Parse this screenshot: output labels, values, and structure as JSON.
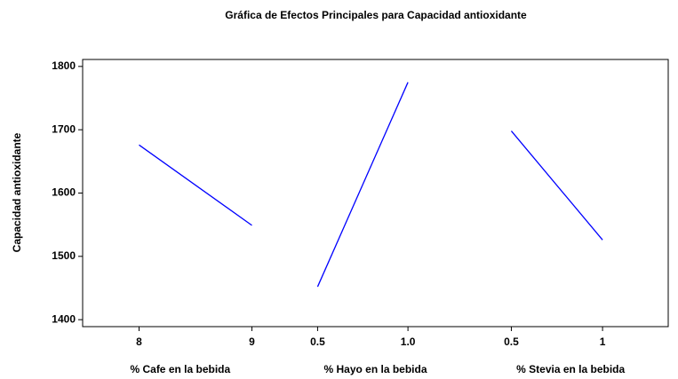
{
  "chart_data": {
    "type": "line",
    "title": "Gráfica de Efectos Principales para Capacidad antioxidante",
    "ylabel": "Capacidad antioxidante",
    "ylim": [
      1389,
      1811
    ],
    "yticks": [
      1400,
      1500,
      1600,
      1700,
      1800
    ],
    "color": "#0000ff",
    "panels": [
      {
        "xlabel": "% Cafe en la bebida",
        "x": [
          8,
          9
        ],
        "values": [
          1676,
          1549
        ],
        "xlim": [
          7.5,
          9.23
        ],
        "xticks": [
          8,
          9
        ]
      },
      {
        "xlabel": "% Hayo en la bebida",
        "x": [
          0.5,
          1
        ],
        "values": [
          1452,
          1775
        ],
        "xlim": [
          0.28,
          1.36
        ],
        "xticks": [
          0.5,
          {
            "value": 1,
            "label": "1.0"
          }
        ]
      },
      {
        "xlabel": "% Stevia en la bebida",
        "x": [
          0.5,
          1
        ],
        "values": [
          1698,
          1526
        ],
        "xlim": [
          0.29,
          1.36
        ],
        "xticks": [
          0.5,
          1
        ]
      }
    ]
  }
}
